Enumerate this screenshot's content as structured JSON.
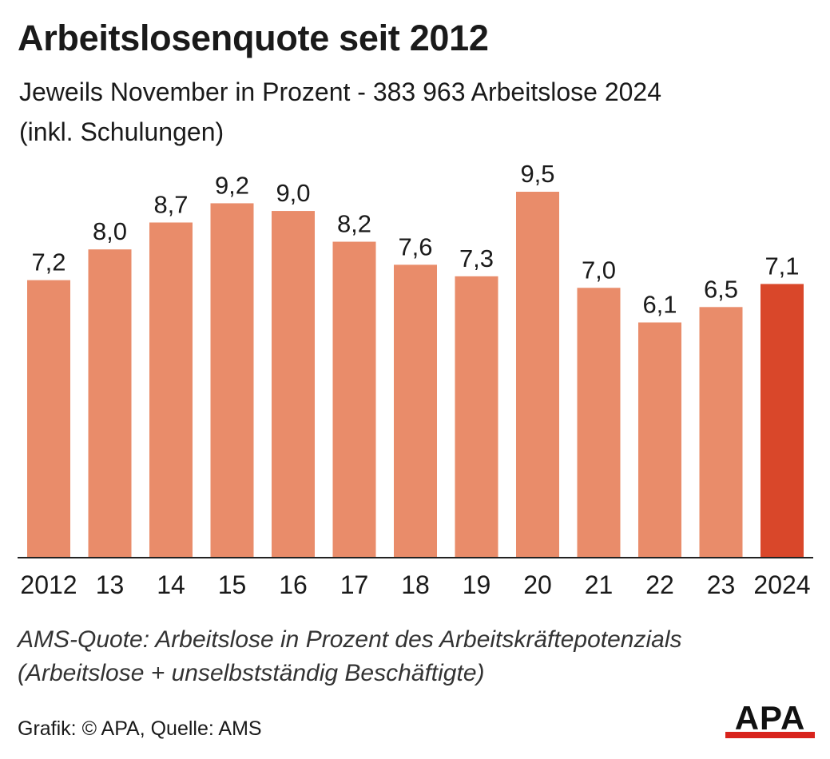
{
  "title": "Arbeitslosenquote seit 2012",
  "subtitle_line1": "Jeweils November in Prozent - 383 963 Arbeitslose 2024",
  "subtitle_line2": "(inkl. Schulungen)",
  "chart_data": {
    "type": "bar",
    "categories": [
      "2012",
      "13",
      "14",
      "15",
      "16",
      "17",
      "18",
      "19",
      "20",
      "21",
      "22",
      "23",
      "2024"
    ],
    "values": [
      7.2,
      8.0,
      8.7,
      9.2,
      9.0,
      8.2,
      7.6,
      7.3,
      9.5,
      7.0,
      6.1,
      6.5,
      7.1
    ],
    "value_labels": [
      "7,2",
      "8,0",
      "8,7",
      "9,2",
      "9,0",
      "8,2",
      "7,6",
      "7,3",
      "9,5",
      "7,0",
      "6,1",
      "6,5",
      "7,1"
    ],
    "highlight_index": 12,
    "ylim": [
      0,
      9.5
    ],
    "grid": false,
    "colors": {
      "bar": "#e98c6a",
      "highlight": "#d9472a",
      "axis": "#222222"
    }
  },
  "note_line1": "AMS-Quote: Arbeitslose in Prozent des Arbeitskräftepotenzials",
  "note_line2": "(Arbeitslose + unselbstständig Beschäftigte)",
  "credit": "Grafik: © APA, Quelle: AMS",
  "logo": {
    "text": "APA",
    "color": "#d8231c"
  }
}
